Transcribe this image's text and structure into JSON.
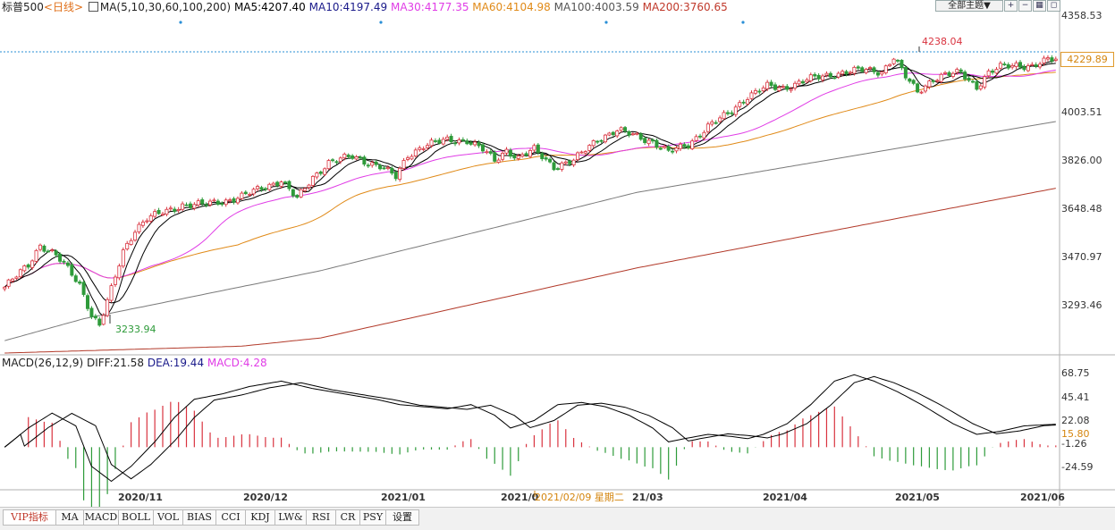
{
  "header": {
    "symbol": "标普500",
    "period": "<日线>",
    "ma_group": "MA(5,10,30,60,100,200)",
    "ma5": "MA5:4207.40",
    "ma10": "MA10:4197.49",
    "ma30": "MA30:4177.35",
    "ma60": "MA60:4104.98",
    "ma100": "MA100:4003.59",
    "ma200": "MA200:3760.65",
    "theme_button": "全部主题▼"
  },
  "macd_header": {
    "name": "MACD(26,12,9)",
    "diff": "DIFF:21.58",
    "dea": "DEA:19.44",
    "macd": "MACD:4.28"
  },
  "colors": {
    "up": "#d9333f",
    "down": "#2e9b3a",
    "ma5": "#000000",
    "ma10": "#000000",
    "ma30": "#e03ce6",
    "ma60": "#e08a18",
    "ma100": "#7a7a7a",
    "ma200": "#b23a2a",
    "diff": "#000000",
    "dea": "#000000"
  },
  "price_axis": {
    "ticks": [
      "4358.53",
      "4229.89",
      "4003.51",
      "3826.00",
      "3648.48",
      "3470.97",
      "3293.46"
    ],
    "current": "4229.89"
  },
  "macd_axis": {
    "ticks": [
      "68.75",
      "45.41",
      "22.08",
      "15.80",
      "-1.26",
      "-24.59"
    ]
  },
  "x_axis": {
    "labels": [
      "2020/11",
      "2020/12",
      "2021/01",
      "2021/0",
      "2021/02/09 星期二",
      "21/03",
      "2021/04",
      "2021/05",
      "2021/06"
    ]
  },
  "annotations": {
    "high": "4238.04",
    "low": "3233.94"
  },
  "tabs": [
    "VIP指标",
    "MA",
    "MACD",
    "BOLL",
    "VOL",
    "BIAS",
    "CCI",
    "KDJ",
    "LW&",
    "RSI",
    "CR",
    "PSY",
    "设置"
  ],
  "chart_data": {
    "type": "candlestick",
    "ylim": [
      3160,
      4400
    ],
    "macd_ylim": [
      -40,
      80
    ],
    "price_waypoints": [
      [
        0,
        3400
      ],
      [
        6,
        3480
      ],
      [
        9,
        3555
      ],
      [
        13,
        3515
      ],
      [
        16,
        3465
      ],
      [
        19,
        3410
      ],
      [
        22,
        3300
      ],
      [
        24,
        3260
      ],
      [
        27,
        3390
      ],
      [
        30,
        3530
      ],
      [
        33,
        3610
      ],
      [
        36,
        3650
      ],
      [
        40,
        3670
      ],
      [
        45,
        3700
      ],
      [
        50,
        3700
      ],
      [
        56,
        3715
      ],
      [
        60,
        3730
      ],
      [
        65,
        3760
      ],
      [
        70,
        3790
      ],
      [
        74,
        3720
      ],
      [
        78,
        3800
      ],
      [
        82,
        3855
      ],
      [
        88,
        3875
      ],
      [
        92,
        3855
      ],
      [
        95,
        3840
      ],
      [
        99,
        3800
      ],
      [
        102,
        3880
      ],
      [
        106,
        3915
      ],
      [
        112,
        3935
      ],
      [
        117,
        3935
      ],
      [
        121,
        3900
      ],
      [
        124,
        3860
      ],
      [
        127,
        3900
      ],
      [
        130,
        3870
      ],
      [
        134,
        3900
      ],
      [
        139,
        3840
      ],
      [
        144,
        3860
      ],
      [
        150,
        3940
      ],
      [
        155,
        3970
      ],
      [
        160,
        3950
      ],
      [
        164,
        3930
      ],
      [
        168,
        3890
      ],
      [
        173,
        3920
      ],
      [
        178,
        3985
      ],
      [
        183,
        4030
      ],
      [
        188,
        4095
      ],
      [
        193,
        4130
      ],
      [
        197,
        4125
      ],
      [
        203,
        4155
      ],
      [
        208,
        4170
      ],
      [
        213,
        4185
      ],
      [
        218,
        4190
      ],
      [
        222,
        4185
      ],
      [
        225,
        4238
      ],
      [
        228,
        4165
      ],
      [
        231,
        4110
      ],
      [
        235,
        4160
      ],
      [
        238,
        4172
      ],
      [
        242,
        4180
      ],
      [
        246,
        4130
      ],
      [
        249,
        4180
      ],
      [
        252,
        4200
      ],
      [
        256,
        4210
      ],
      [
        260,
        4205
      ],
      [
        264,
        4225
      ],
      [
        266,
        4230
      ]
    ],
    "ma100_line": [
      [
        0,
        3205
      ],
      [
        20,
        3285
      ],
      [
        80,
        3460
      ],
      [
        160,
        3745
      ],
      [
        266,
        4003
      ]
    ],
    "ma200_line": [
      [
        0,
        3160
      ],
      [
        60,
        3185
      ],
      [
        80,
        3215
      ],
      [
        160,
        3470
      ],
      [
        266,
        3760
      ]
    ],
    "macd_waypoints": [
      [
        0,
        0
      ],
      [
        6,
        18
      ],
      [
        12,
        32
      ],
      [
        18,
        20
      ],
      [
        22,
        -18
      ],
      [
        27,
        -32
      ],
      [
        32,
        -18
      ],
      [
        38,
        5
      ],
      [
        43,
        28
      ],
      [
        48,
        45
      ],
      [
        55,
        50
      ],
      [
        62,
        57
      ],
      [
        70,
        62
      ],
      [
        78,
        55
      ],
      [
        86,
        50
      ],
      [
        94,
        45
      ],
      [
        100,
        40
      ],
      [
        106,
        38
      ],
      [
        112,
        36
      ],
      [
        118,
        40
      ],
      [
        124,
        30
      ],
      [
        128,
        18
      ],
      [
        134,
        25
      ],
      [
        140,
        40
      ],
      [
        146,
        42
      ],
      [
        152,
        38
      ],
      [
        158,
        30
      ],
      [
        164,
        18
      ],
      [
        168,
        5
      ],
      [
        172,
        8
      ],
      [
        178,
        12
      ],
      [
        184,
        10
      ],
      [
        188,
        8
      ],
      [
        192,
        12
      ],
      [
        198,
        22
      ],
      [
        204,
        40
      ],
      [
        210,
        62
      ],
      [
        215,
        68
      ],
      [
        220,
        62
      ],
      [
        226,
        52
      ],
      [
        232,
        40
      ],
      [
        240,
        22
      ],
      [
        246,
        12
      ],
      [
        252,
        15
      ],
      [
        258,
        20
      ],
      [
        266,
        21.58
      ]
    ]
  }
}
